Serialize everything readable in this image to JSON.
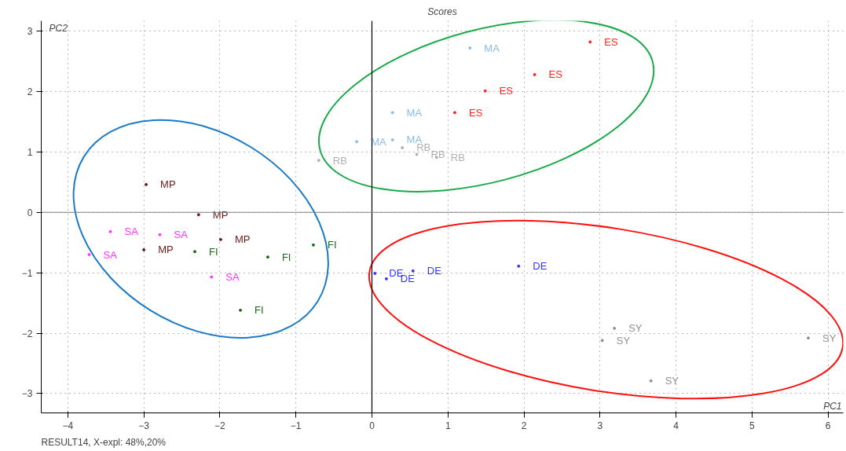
{
  "chart_data": {
    "type": "scatter",
    "title": "Scores",
    "xlabel": "PC1",
    "ylabel": "PC2",
    "annotations": [
      "RESULT14, X-expl: 48%,20%"
    ],
    "xlim": [
      -4.35,
      6.2
    ],
    "ylim": [
      -3.32,
      3.17
    ],
    "xticks": [
      -4,
      -3,
      -2,
      -1,
      0,
      1,
      2,
      3,
      4,
      5,
      6
    ],
    "yticks": [
      -3,
      -2,
      -1,
      0,
      1,
      2,
      3
    ],
    "grid": true,
    "legend": false,
    "marker": "circle",
    "ref_lines": [
      {
        "axis": "x",
        "value": 0,
        "color": "#000000"
      },
      {
        "axis": "y",
        "value": 0,
        "color": "#808080"
      }
    ],
    "series": [
      {
        "name": "MP",
        "color": "#6b1a1a",
        "x": [
          -2.97,
          -2.28,
          -1.99,
          -3.0
        ],
        "values": [
          0.46,
          -0.04,
          -0.45,
          -0.62
        ]
      },
      {
        "name": "SA",
        "color": "#ff33ff",
        "x": [
          -3.44,
          -2.79,
          -3.72,
          -2.11
        ],
        "values": [
          -0.32,
          -0.37,
          -0.7,
          -1.07
        ]
      },
      {
        "name": "FI",
        "color": "#1a6b1a",
        "x": [
          -2.33,
          -1.37,
          -0.77,
          -1.73
        ],
        "values": [
          -0.65,
          -0.74,
          -0.54,
          -1.62
        ]
      },
      {
        "name": "MA",
        "color": "#88bbee",
        "x": [
          1.29,
          0.27,
          -0.2,
          0.27
        ],
        "values": [
          2.72,
          1.65,
          1.17,
          1.2
        ]
      },
      {
        "name": "ES",
        "color": "#ff2020",
        "x": [
          2.87,
          2.14,
          1.49,
          1.09
        ],
        "values": [
          2.82,
          2.28,
          2.01,
          1.65
        ]
      },
      {
        "name": "RB",
        "color": "#b0b0b0",
        "x": [
          -0.7,
          0.4,
          0.59,
          0.85
        ],
        "values": [
          0.86,
          1.07,
          0.96,
          0.91
        ]
      },
      {
        "name": "DE",
        "color": "#3333ff",
        "x": [
          0.04,
          0.19,
          0.54,
          1.93
        ],
        "values": [
          -1.01,
          -1.1,
          -0.97,
          -0.89
        ]
      },
      {
        "name": "SY",
        "color": "#909090",
        "x": [
          3.19,
          3.03,
          5.74,
          3.67
        ],
        "values": [
          -1.92,
          -2.12,
          -2.08,
          -2.79
        ]
      }
    ]
  }
}
